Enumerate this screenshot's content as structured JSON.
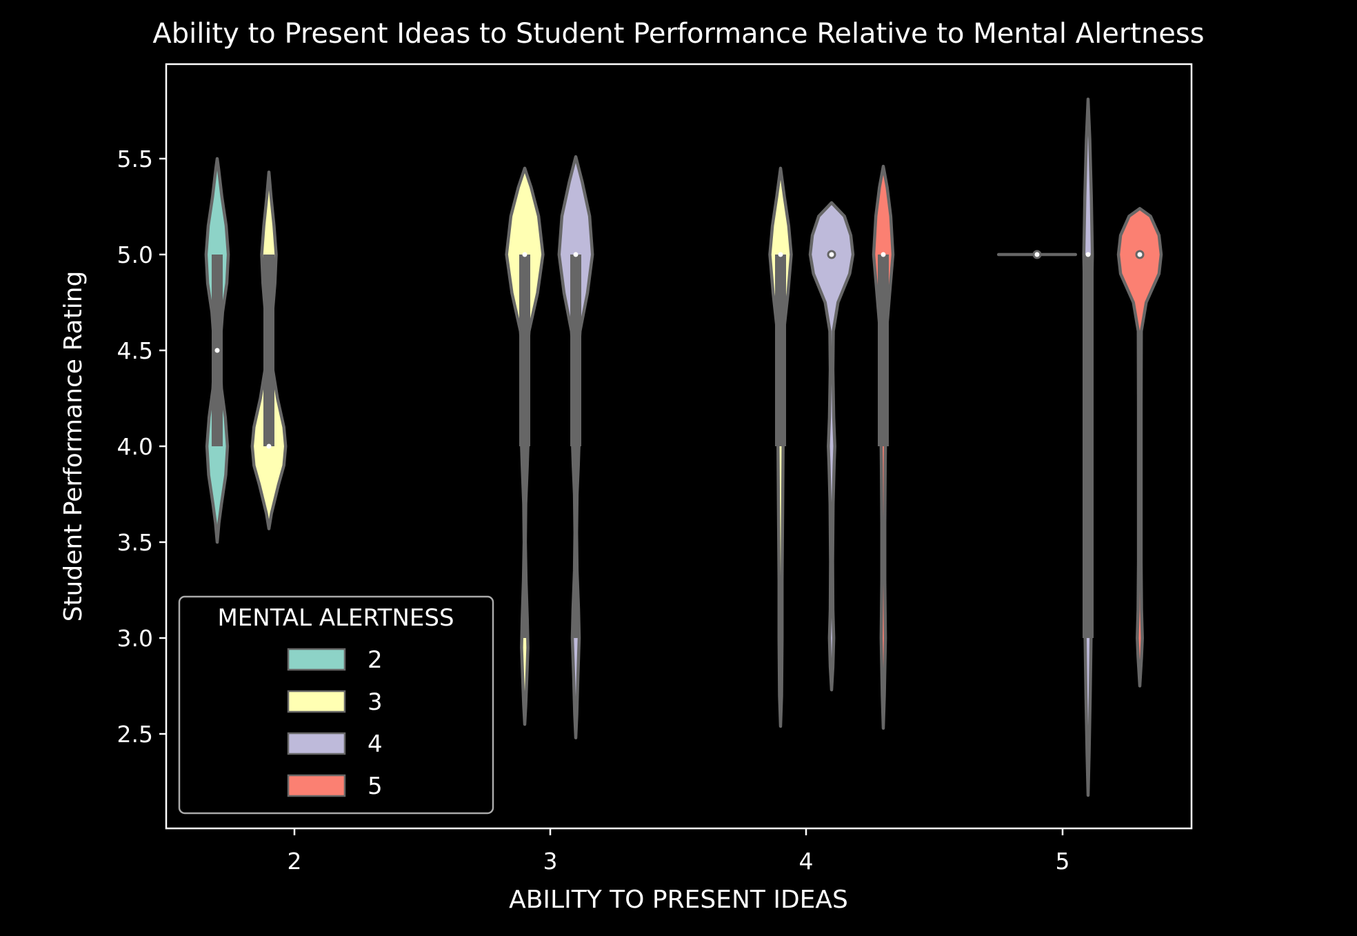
{
  "chart_data": {
    "type": "violin",
    "title": "Ability to Present Ideas to Student Performance Relative to Mental Alertness",
    "xlabel": "ABILITY TO PRESENT IDEAS",
    "ylabel": "Student Performance Rating",
    "categories": [
      "2",
      "3",
      "4",
      "5"
    ],
    "ylim": [
      2.0,
      6.0
    ],
    "yticks": [
      "2.5",
      "3.0",
      "3.5",
      "4.0",
      "4.5",
      "5.0",
      "5.5"
    ],
    "grid": false,
    "legend": {
      "title": "MENTAL ALERTNESS",
      "placement": "lower-left",
      "entries": [
        {
          "label": "2",
          "color": "#8dd3c7"
        },
        {
          "label": "3",
          "color": "#ffffb3"
        },
        {
          "label": "4",
          "color": "#bebada"
        },
        {
          "label": "5",
          "color": "#fb8072"
        }
      ]
    },
    "colors": {
      "background": "#000000",
      "foreground": "#ffffff",
      "violin_edge": "#666666",
      "box": "#666666"
    },
    "violins": [
      {
        "x_category": "2",
        "hue": "2",
        "median": 4.5,
        "q1": 4.0,
        "q3": 5.0,
        "whisker_low": 4.0,
        "whisker_high": 5.0,
        "profile": [
          [
            3.5,
            0.0
          ],
          [
            3.6,
            0.08
          ],
          [
            3.7,
            0.2
          ],
          [
            3.85,
            0.4
          ],
          [
            4.0,
            0.48
          ],
          [
            4.15,
            0.38
          ],
          [
            4.3,
            0.2
          ],
          [
            4.5,
            0.12
          ],
          [
            4.7,
            0.25
          ],
          [
            4.85,
            0.45
          ],
          [
            5.0,
            0.52
          ],
          [
            5.15,
            0.42
          ],
          [
            5.3,
            0.22
          ],
          [
            5.45,
            0.06
          ],
          [
            5.5,
            0.0
          ]
        ]
      },
      {
        "x_category": "2",
        "hue": "3",
        "median": 4.0,
        "q1": 4.0,
        "q3": 5.0,
        "whisker_low": 4.0,
        "whisker_high": 5.0,
        "profile": [
          [
            3.57,
            0.0
          ],
          [
            3.65,
            0.12
          ],
          [
            3.8,
            0.45
          ],
          [
            3.9,
            0.7
          ],
          [
            4.0,
            0.78
          ],
          [
            4.1,
            0.7
          ],
          [
            4.25,
            0.4
          ],
          [
            4.4,
            0.18
          ],
          [
            4.55,
            0.12
          ],
          [
            4.7,
            0.17
          ],
          [
            4.85,
            0.28
          ],
          [
            5.0,
            0.34
          ],
          [
            5.15,
            0.24
          ],
          [
            5.3,
            0.1
          ],
          [
            5.43,
            0.0
          ]
        ]
      },
      {
        "x_category": "3",
        "hue": "3",
        "median": 5.0,
        "q1": 4.0,
        "q3": 5.0,
        "whisker_low": 3.0,
        "whisker_high": 5.0,
        "profile": [
          [
            2.55,
            0.0
          ],
          [
            2.65,
            0.05
          ],
          [
            2.8,
            0.1
          ],
          [
            2.95,
            0.15
          ],
          [
            3.1,
            0.12
          ],
          [
            3.3,
            0.06
          ],
          [
            3.5,
            0.03
          ],
          [
            3.7,
            0.05
          ],
          [
            3.9,
            0.12
          ],
          [
            4.0,
            0.15
          ],
          [
            4.15,
            0.1
          ],
          [
            4.4,
            0.08
          ],
          [
            4.6,
            0.2
          ],
          [
            4.8,
            0.6
          ],
          [
            5.0,
            0.85
          ],
          [
            5.2,
            0.65
          ],
          [
            5.35,
            0.3
          ],
          [
            5.45,
            0.0
          ]
        ]
      },
      {
        "x_category": "3",
        "hue": "4",
        "median": 5.0,
        "q1": 4.0,
        "q3": 5.0,
        "whisker_low": 3.0,
        "whisker_high": 5.0,
        "profile": [
          [
            2.48,
            0.0
          ],
          [
            2.6,
            0.05
          ],
          [
            2.8,
            0.1
          ],
          [
            3.0,
            0.16
          ],
          [
            3.15,
            0.13
          ],
          [
            3.35,
            0.06
          ],
          [
            3.55,
            0.04
          ],
          [
            3.75,
            0.06
          ],
          [
            3.9,
            0.12
          ],
          [
            4.0,
            0.15
          ],
          [
            4.15,
            0.1
          ],
          [
            4.4,
            0.09
          ],
          [
            4.6,
            0.2
          ],
          [
            4.8,
            0.55
          ],
          [
            5.0,
            0.78
          ],
          [
            5.2,
            0.65
          ],
          [
            5.38,
            0.3
          ],
          [
            5.51,
            0.0
          ]
        ]
      },
      {
        "x_category": "4",
        "hue": "3",
        "median": 5.0,
        "q1": 4.0,
        "q3": 5.0,
        "whisker_low": 4.0,
        "whisker_high": 5.0,
        "profile": [
          [
            2.54,
            0.0
          ],
          [
            2.7,
            0.05
          ],
          [
            3.0,
            0.07
          ],
          [
            3.3,
            0.07
          ],
          [
            3.7,
            0.1
          ],
          [
            4.0,
            0.12
          ],
          [
            4.3,
            0.1
          ],
          [
            4.6,
            0.15
          ],
          [
            4.8,
            0.35
          ],
          [
            5.0,
            0.5
          ],
          [
            5.15,
            0.38
          ],
          [
            5.3,
            0.18
          ],
          [
            5.45,
            0.0
          ]
        ]
      },
      {
        "x_category": "4",
        "hue": "4",
        "median": 5.0,
        "q1": 5.0,
        "q3": 5.0,
        "whisker_low": 5.0,
        "whisker_high": 5.0,
        "profile": [
          [
            2.73,
            0.0
          ],
          [
            2.85,
            0.06
          ],
          [
            3.0,
            0.1
          ],
          [
            3.15,
            0.06
          ],
          [
            3.4,
            0.05
          ],
          [
            3.7,
            0.07
          ],
          [
            3.9,
            0.12
          ],
          [
            4.0,
            0.15
          ],
          [
            4.15,
            0.1
          ],
          [
            4.4,
            0.06
          ],
          [
            4.6,
            0.08
          ],
          [
            4.75,
            0.3
          ],
          [
            4.9,
            0.85
          ],
          [
            5.0,
            1.0
          ],
          [
            5.1,
            0.9
          ],
          [
            5.2,
            0.6
          ],
          [
            5.27,
            0.0
          ]
        ]
      },
      {
        "x_category": "4",
        "hue": "5",
        "median": 5.0,
        "q1": 4.0,
        "q3": 5.0,
        "whisker_low": 4.0,
        "whisker_high": 5.0,
        "profile": [
          [
            2.53,
            0.0
          ],
          [
            2.7,
            0.05
          ],
          [
            3.0,
            0.1
          ],
          [
            3.3,
            0.07
          ],
          [
            3.6,
            0.07
          ],
          [
            3.9,
            0.09
          ],
          [
            4.0,
            0.1
          ],
          [
            4.3,
            0.1
          ],
          [
            4.6,
            0.15
          ],
          [
            4.8,
            0.3
          ],
          [
            5.0,
            0.45
          ],
          [
            5.2,
            0.35
          ],
          [
            5.35,
            0.18
          ],
          [
            5.46,
            0.0
          ]
        ]
      },
      {
        "x_category": "5",
        "hue": "3",
        "median": 5.0,
        "q1": 5.0,
        "q3": 5.0,
        "whisker_low": 5.0,
        "whisker_high": 5.0,
        "profile": [
          [
            5.0,
            0.0
          ],
          [
            5.0,
            1.8
          ]
        ]
      },
      {
        "x_category": "5",
        "hue": "4",
        "median": 5.0,
        "q1": 3.0,
        "q3": 5.0,
        "whisker_low": 3.0,
        "whisker_high": 5.0,
        "profile": [
          [
            2.18,
            0.0
          ],
          [
            2.4,
            0.05
          ],
          [
            2.7,
            0.1
          ],
          [
            3.0,
            0.14
          ],
          [
            3.3,
            0.12
          ],
          [
            3.7,
            0.12
          ],
          [
            4.0,
            0.13
          ],
          [
            4.4,
            0.13
          ],
          [
            4.7,
            0.15
          ],
          [
            5.0,
            0.2
          ],
          [
            5.3,
            0.15
          ],
          [
            5.6,
            0.08
          ],
          [
            5.81,
            0.0
          ]
        ]
      },
      {
        "x_category": "5",
        "hue": "5",
        "median": 5.0,
        "q1": 5.0,
        "q3": 5.0,
        "whisker_low": 5.0,
        "whisker_high": 5.0,
        "profile": [
          [
            2.75,
            0.0
          ],
          [
            2.9,
            0.08
          ],
          [
            3.0,
            0.12
          ],
          [
            3.15,
            0.08
          ],
          [
            3.4,
            0.06
          ],
          [
            3.8,
            0.06
          ],
          [
            4.2,
            0.06
          ],
          [
            4.6,
            0.07
          ],
          [
            4.75,
            0.3
          ],
          [
            4.9,
            0.9
          ],
          [
            5.0,
            1.0
          ],
          [
            5.1,
            0.9
          ],
          [
            5.2,
            0.5
          ],
          [
            5.24,
            0.0
          ]
        ]
      }
    ]
  }
}
